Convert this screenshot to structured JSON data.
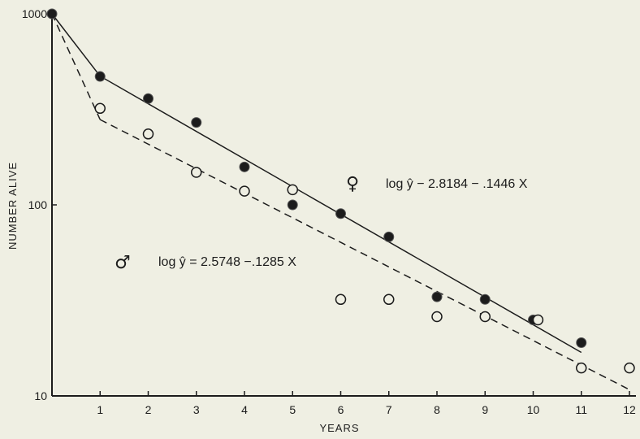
{
  "chart_data": {
    "type": "scatter",
    "title": "",
    "xlabel": "YEARS",
    "ylabel": "NUMBER ALIVE",
    "xlim": [
      0,
      12
    ],
    "ylim": [
      10,
      1000
    ],
    "yscale": "log",
    "grid": false,
    "x_ticks": [
      "1",
      "2",
      "3",
      "4",
      "5",
      "6",
      "7",
      "8",
      "9",
      "10",
      "11",
      "12"
    ],
    "y_ticks": [
      "10",
      "100",
      "1000"
    ],
    "series": [
      {
        "symbol": "♀",
        "marker": "filled-circle",
        "line_style": "solid",
        "x": [
          0,
          1,
          2,
          3,
          4,
          5,
          6,
          7,
          8,
          9,
          10,
          11
        ],
        "y": [
          1000,
          470,
          360,
          270,
          158,
          100,
          90,
          68,
          33,
          32,
          25,
          19
        ],
        "fit": {
          "label": "log ŷ − 2.8184 − .1446 X",
          "intercept": 2.8184,
          "slope": -0.1446,
          "x_range": [
            1,
            11
          ]
        }
      },
      {
        "symbol": "♂",
        "marker": "open-circle",
        "line_style": "dashed",
        "x": [
          1,
          2,
          3,
          4,
          5,
          6,
          7,
          8,
          9,
          10.1,
          11,
          12
        ],
        "y": [
          320,
          235,
          148,
          118,
          120,
          32,
          32,
          26,
          26,
          25,
          14,
          14
        ],
        "fit": {
          "label": "log ŷ = 2.5748 −.1285 X",
          "intercept": 2.5748,
          "slope": -0.1285,
          "x_range": [
            1,
            12
          ]
        }
      }
    ],
    "connectors": [
      {
        "from": [
          0,
          1000
        ],
        "to_series": 0,
        "style": "solid"
      },
      {
        "from": [
          0,
          1000
        ],
        "to_series": 1,
        "style": "dashed"
      }
    ]
  }
}
